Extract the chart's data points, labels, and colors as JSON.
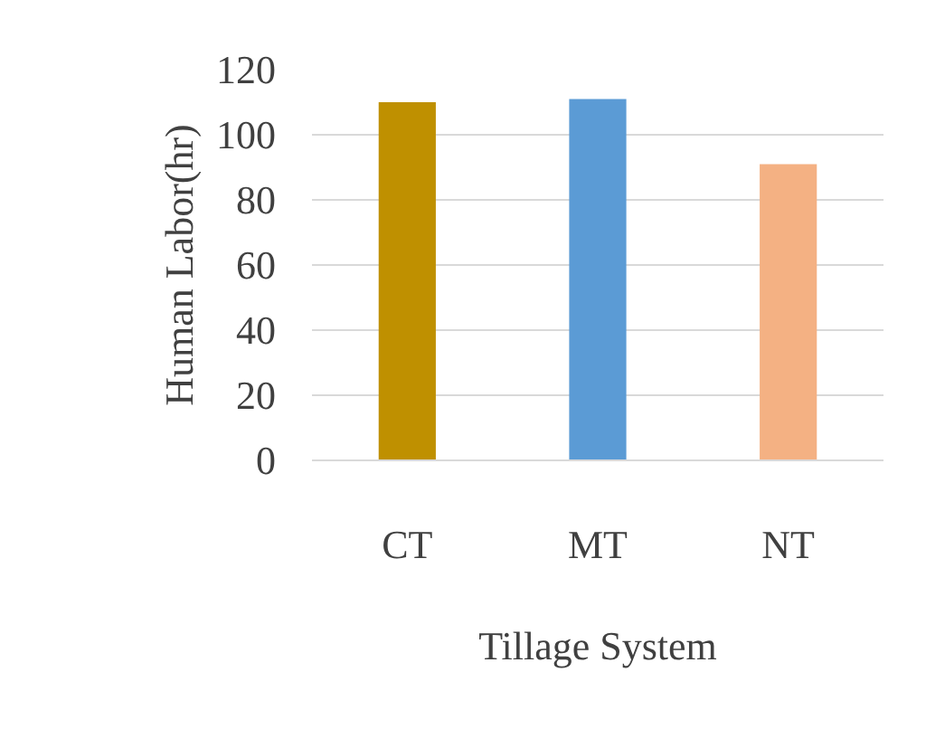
{
  "chart_data": {
    "type": "bar",
    "xlabel": "Tillage System",
    "ylabel": "Human Labor(hr)",
    "categories": [
      "CT",
      "MT",
      "NT"
    ],
    "values": [
      110,
      111,
      91
    ],
    "colors": [
      "#bf9000",
      "#5b9bd5",
      "#f4b183"
    ],
    "ylim": [
      0,
      120
    ],
    "yticks": [
      0,
      20,
      40,
      60,
      80,
      100,
      120
    ],
    "grid": "y"
  }
}
